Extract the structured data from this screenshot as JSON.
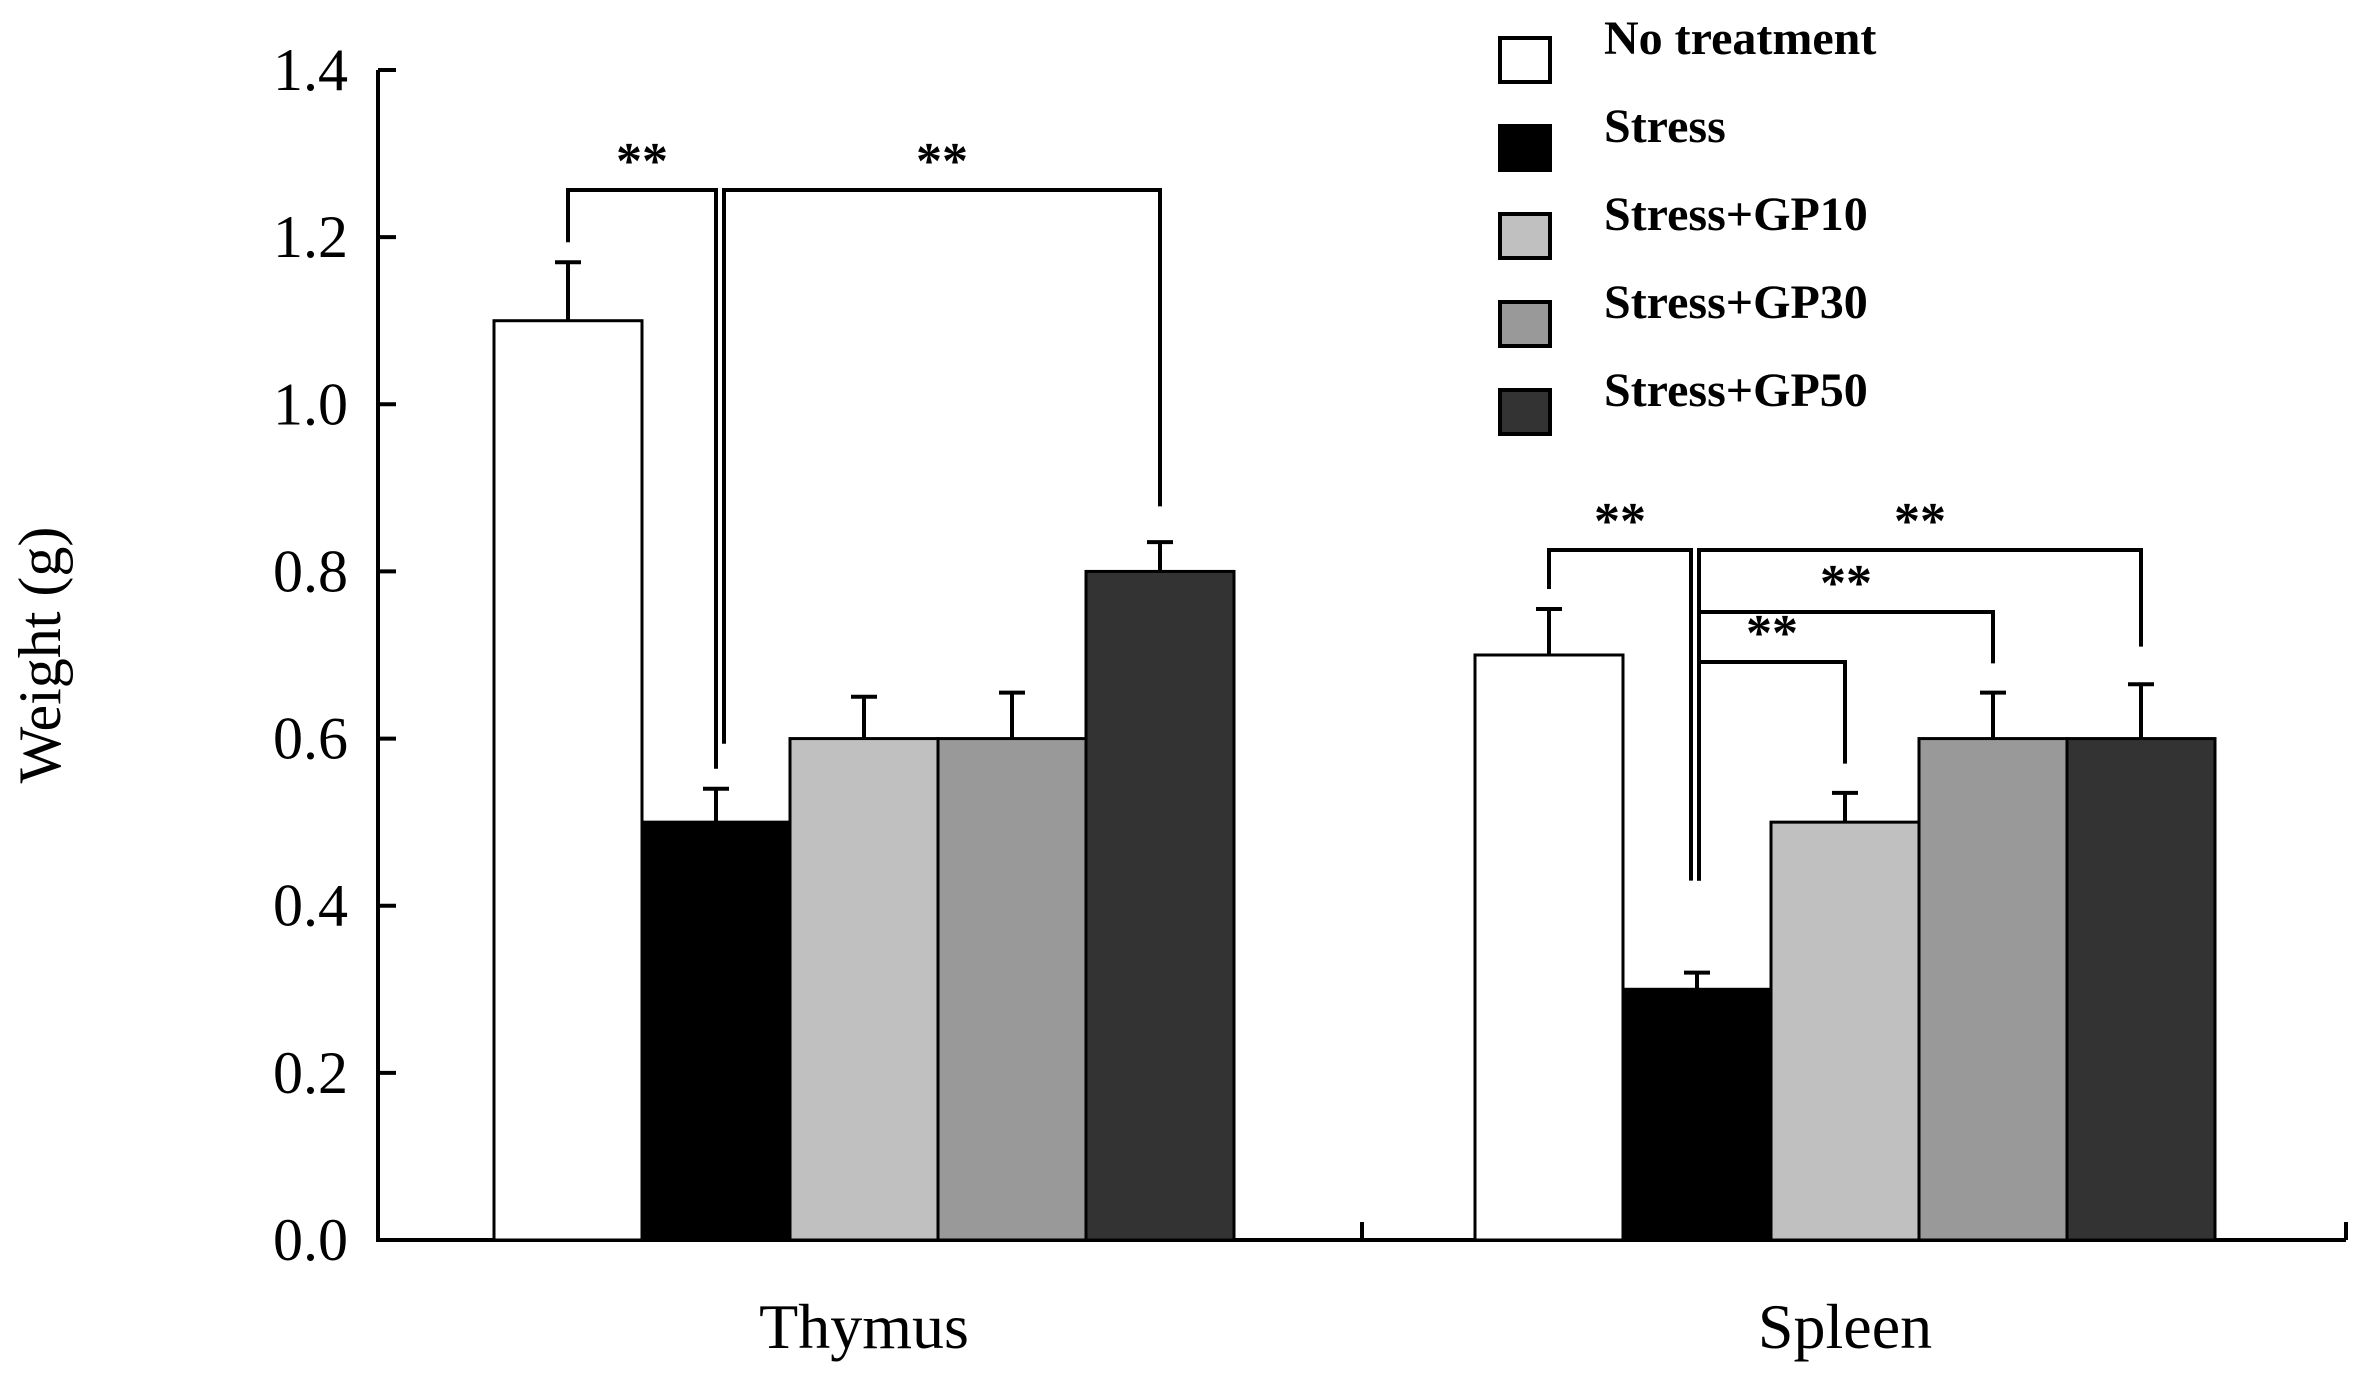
{
  "chart_data": {
    "type": "bar",
    "title": "",
    "xlabel": "",
    "ylabel": "Weight (g)",
    "ylim": [
      0,
      1.4
    ],
    "yticks": [
      "0.0",
      "0.2",
      "0.4",
      "0.6",
      "0.8",
      "1.0",
      "1.2",
      "1.4"
    ],
    "categories": [
      "Thymus",
      "Spleen"
    ],
    "series": [
      {
        "name": "No treatment",
        "color": "#ffffff",
        "values": [
          1.1,
          0.7
        ],
        "errors": [
          0.07,
          0.055
        ]
      },
      {
        "name": "Stress",
        "color": "#000000",
        "values": [
          0.5,
          0.3
        ],
        "errors": [
          0.04,
          0.02
        ]
      },
      {
        "name": "Stress+GP10",
        "color": "#c0c0c0",
        "values": [
          0.6,
          0.5
        ],
        "errors": [
          0.05,
          0.035
        ]
      },
      {
        "name": "Stress+GP30",
        "color": "#999999",
        "values": [
          0.6,
          0.6
        ],
        "errors": [
          0.055,
          0.055
        ]
      },
      {
        "name": "Stress+GP50",
        "color": "#333333",
        "values": [
          0.8,
          0.6
        ],
        "errors": [
          0.035,
          0.065
        ]
      }
    ],
    "legend_position": "top-right",
    "significance": [
      {
        "category": 0,
        "from": 0,
        "to": 1,
        "label": "**"
      },
      {
        "category": 0,
        "from": 1,
        "to": 4,
        "label": "**"
      },
      {
        "category": 1,
        "from": 0,
        "to": 1,
        "label": "**"
      },
      {
        "category": 1,
        "from": 1,
        "to": 4,
        "label": "**"
      },
      {
        "category": 1,
        "from": 1,
        "to": 3,
        "label": "**"
      },
      {
        "category": 1,
        "from": 1,
        "to": 2,
        "label": "**"
      }
    ]
  }
}
